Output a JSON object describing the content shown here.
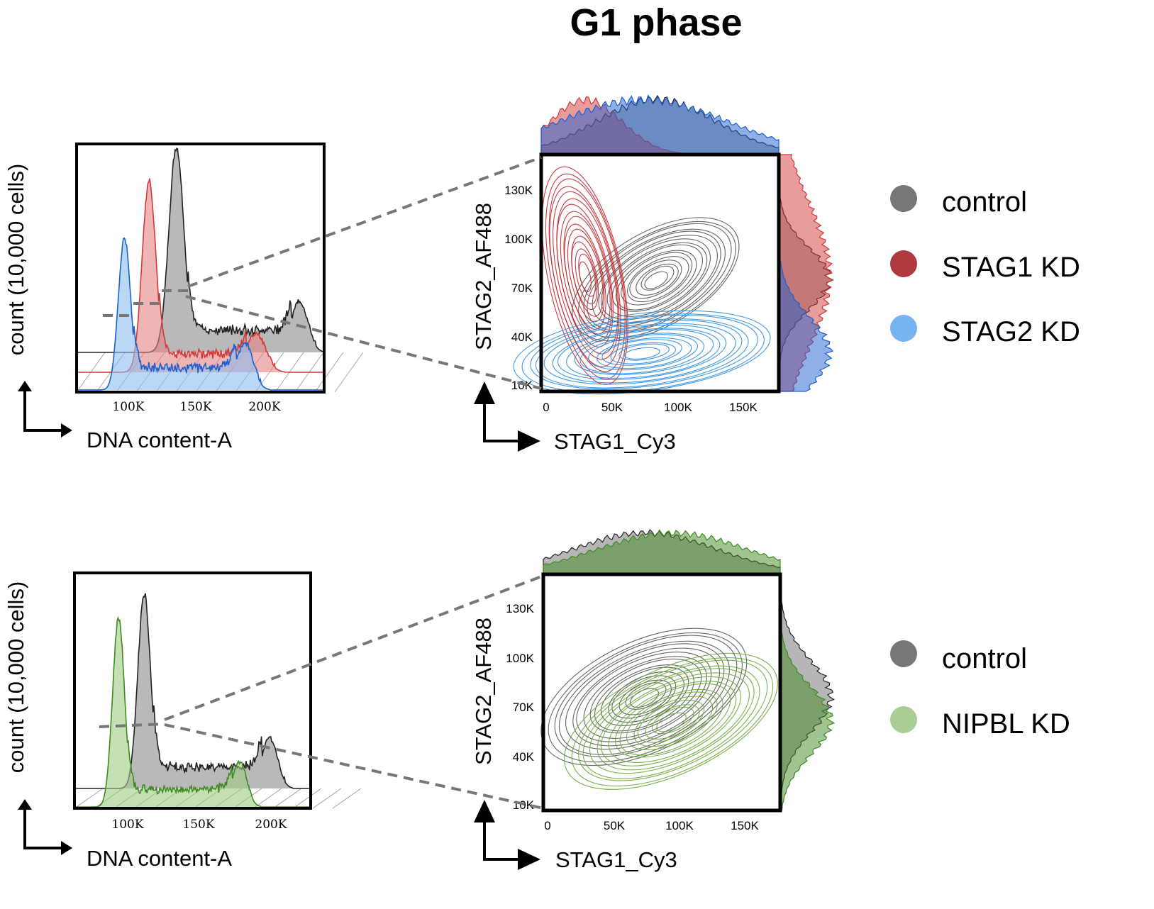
{
  "title": "G1 phase",
  "colors": {
    "control": "#7a7a7a",
    "control_line": "#222222",
    "stag1": "#d23a3a",
    "stag1_fill": "#e58383",
    "stag1_contour": "#c0282e",
    "stag1_legend": "#b0393e",
    "stag2": "#1f5fd0",
    "stag2_fill": "#8cbcef",
    "stag2_contour": "#2e8ee0",
    "stag2_legend": "#78b4ef",
    "nipbl": "#3f8a22",
    "nipbl_fill": "#9fcc82",
    "nipbl_contour": "#6aaa3a",
    "nipbl_legend": "#a9cd94"
  },
  "chart_data": [
    {
      "id": "top-histogram",
      "type": "area",
      "xlabel": "DNA content-A",
      "ylabel": "count (10,000 cells)",
      "xticks": [
        "100K",
        "150K",
        "200K"
      ],
      "xtick_values": [
        100000,
        150000,
        200000
      ],
      "xlim": [
        62000,
        243000
      ],
      "series": [
        {
          "name": "control",
          "key": "control",
          "g1_peak": 135000,
          "g1_height": 1.0,
          "g1_sd": 5500,
          "s_level": 0.1,
          "g2_peak": 225000,
          "g2_height": 0.24,
          "g2_sd": 6000
        },
        {
          "name": "STAG1 KD",
          "key": "stag1",
          "g1_peak": 115000,
          "g1_height": 0.93,
          "g1_sd": 5000,
          "s_level": 0.08,
          "g2_peak": 193000,
          "g2_height": 0.18,
          "g2_sd": 7000
        },
        {
          "name": "STAG2 KD",
          "key": "stag2",
          "g1_peak": 97000,
          "g1_height": 0.74,
          "g1_sd": 4500,
          "s_level": 0.1,
          "g2_peak": 185000,
          "g2_height": 0.22,
          "g2_sd": 6000
        }
      ]
    },
    {
      "id": "top-contour",
      "type": "scatter",
      "xlabel": "STAG1_Cy3",
      "ylabel": "STAG2_AF488",
      "xticks": [
        "0",
        "50K",
        "100K",
        "150K"
      ],
      "xtick_values": [
        0,
        50000,
        100000,
        150000
      ],
      "yticks": [
        "130K",
        "100K",
        "70K",
        "40K",
        "10K"
      ],
      "ytick_values": [
        130000,
        100000,
        70000,
        40000,
        10000
      ],
      "xlim": [
        0,
        175000
      ],
      "ylim": [
        7000,
        152000
      ],
      "series": [
        {
          "name": "control",
          "key": "control",
          "cx": 85000,
          "cy": 76000,
          "sx": 40000,
          "sy": 17000,
          "angle": 30,
          "levels": 16
        },
        {
          "name": "STAG1 KD",
          "key": "stag1",
          "cx": 33000,
          "cy": 78000,
          "sx": 16000,
          "sy": 40000,
          "angle": 12,
          "levels": 16
        },
        {
          "name": "STAG2 KD",
          "key": "stag2",
          "cx": 75000,
          "cy": 31000,
          "sx": 56000,
          "sy": 14000,
          "angle": 7,
          "levels": 16
        }
      ],
      "legend": [
        "control",
        "STAG1 KD",
        "STAG2 KD"
      ],
      "legend_position": "right"
    },
    {
      "id": "bottom-histogram",
      "type": "area",
      "xlabel": "DNA content-A",
      "ylabel": "count (10,000 cells)",
      "xticks": [
        "100K",
        "150K",
        "200K"
      ],
      "xtick_values": [
        100000,
        150000,
        200000
      ],
      "xlim": [
        62000,
        228000
      ],
      "series": [
        {
          "name": "control",
          "key": "control",
          "g1_peak": 111000,
          "g1_height": 1.0,
          "g1_sd": 4500,
          "s_level": 0.1,
          "g2_peak": 199000,
          "g2_height": 0.25,
          "g2_sd": 5500
        },
        {
          "name": "NIPBL KD",
          "key": "nipbl",
          "g1_peak": 93000,
          "g1_height": 0.97,
          "g1_sd": 4200,
          "s_level": 0.08,
          "g2_peak": 178000,
          "g2_height": 0.22,
          "g2_sd": 5000
        }
      ]
    },
    {
      "id": "bottom-contour",
      "type": "scatter",
      "xlabel": "STAG1_Cy3",
      "ylabel": "STAG2_AF488",
      "xticks": [
        "0",
        "50K",
        "100K",
        "150K"
      ],
      "xtick_values": [
        0,
        50000,
        100000,
        150000
      ],
      "yticks": [
        "130K",
        "100K",
        "70K",
        "40K",
        "10K"
      ],
      "ytick_values": [
        130000,
        100000,
        70000,
        40000,
        10000
      ],
      "xlim": [
        0,
        175000
      ],
      "ylim": [
        7000,
        152000
      ],
      "series": [
        {
          "name": "control",
          "key": "control",
          "cx": 75000,
          "cy": 77000,
          "sx": 48000,
          "sy": 20000,
          "angle": 25,
          "levels": 16
        },
        {
          "name": "NIPBL KD",
          "key": "nipbl",
          "cx": 95000,
          "cy": 62000,
          "sx": 50000,
          "sy": 19000,
          "angle": 25,
          "levels": 16
        }
      ],
      "legend": [
        "control",
        "NIPBL KD"
      ],
      "legend_position": "right"
    }
  ]
}
